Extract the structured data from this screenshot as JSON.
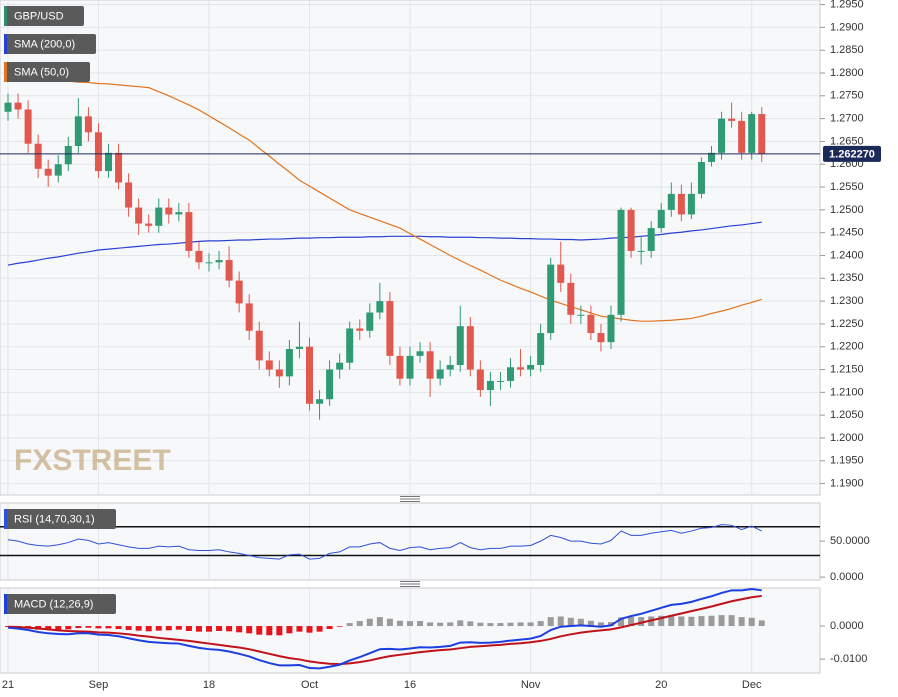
{
  "chart_data": [
    {
      "type": "candlestick",
      "name": "GBP/USD",
      "color": "#2e8b6e",
      "up_color": "#2f9a74",
      "down_color": "#e0584e",
      "watermark": "FXSTREET",
      "categories": [
        "21",
        null,
        null,
        null,
        null,
        null,
        null,
        null,
        null,
        "Sep",
        null,
        null,
        null,
        null,
        null,
        null,
        null,
        null,
        null,
        null,
        "18",
        null,
        null,
        null,
        null,
        null,
        null,
        null,
        null,
        null,
        "Oct",
        null,
        null,
        null,
        null,
        null,
        null,
        null,
        null,
        null,
        "16",
        null,
        null,
        null,
        null,
        null,
        null,
        null,
        null,
        null,
        null,
        null,
        "Nov",
        null,
        null,
        null,
        null,
        null,
        null,
        null,
        null,
        null,
        null,
        null,
        null,
        "20",
        null,
        null,
        null,
        null,
        null,
        null,
        null,
        null,
        "Dec",
        null
      ],
      "open": [
        1.2715,
        1.2735,
        1.272,
        1.2645,
        1.259,
        1.2575,
        1.26,
        1.264,
        1.2705,
        1.267,
        1.2585,
        1.2625,
        1.256,
        1.2505,
        1.247,
        1.2465,
        1.2505,
        1.249,
        1.2495,
        1.241,
        1.2385,
        1.2385,
        1.239,
        1.2345,
        1.2295,
        1.2235,
        1.217,
        1.215,
        1.2135,
        1.2195,
        1.22,
        1.2075,
        1.2085,
        1.215,
        1.2165,
        1.224,
        1.2235,
        1.2275,
        1.23,
        1.218,
        1.213,
        1.218,
        1.219,
        1.213,
        1.215,
        1.216,
        1.2245,
        1.215,
        1.2105,
        1.2125,
        1.2125,
        1.2155,
        1.215,
        1.216,
        1.223,
        1.238,
        1.234,
        1.227,
        1.227,
        1.223,
        1.221,
        1.227,
        1.25,
        1.241,
        1.241,
        1.246,
        1.25,
        1.2535,
        1.249,
        1.2535,
        1.2605,
        1.2625,
        1.27,
        1.2695,
        1.2625,
        1.271
      ],
      "high": [
        1.2755,
        1.2755,
        1.274,
        1.2665,
        1.261,
        1.262,
        1.266,
        1.2745,
        1.2725,
        1.269,
        1.2645,
        1.2645,
        1.258,
        1.2525,
        1.249,
        1.2525,
        1.2525,
        1.2515,
        1.2515,
        1.243,
        1.2405,
        1.241,
        1.242,
        1.2365,
        1.2315,
        1.2255,
        1.219,
        1.217,
        1.2215,
        1.2255,
        1.222,
        1.2105,
        1.217,
        1.2185,
        1.2255,
        1.226,
        1.2295,
        1.234,
        1.232,
        1.22,
        1.22,
        1.221,
        1.221,
        1.217,
        1.218,
        1.229,
        1.2265,
        1.217,
        1.2145,
        1.2145,
        1.2175,
        1.2195,
        1.218,
        1.225,
        1.2395,
        1.243,
        1.236,
        1.229,
        1.229,
        1.225,
        1.229,
        1.2505,
        1.2505,
        1.244,
        1.2475,
        1.2515,
        1.256,
        1.2555,
        1.256,
        1.2615,
        1.264,
        1.2715,
        1.2735,
        1.2715,
        1.2715,
        1.2725
      ],
      "low": [
        1.2695,
        1.27,
        1.2625,
        1.257,
        1.255,
        1.256,
        1.2585,
        1.2625,
        1.265,
        1.257,
        1.257,
        1.2545,
        1.2485,
        1.2445,
        1.245,
        1.245,
        1.247,
        1.2475,
        1.2395,
        1.237,
        1.2365,
        1.237,
        1.233,
        1.2275,
        1.2215,
        1.215,
        1.2135,
        1.211,
        1.2115,
        1.2175,
        1.206,
        1.204,
        1.207,
        1.213,
        1.215,
        1.2215,
        1.222,
        1.226,
        1.216,
        1.2115,
        1.2115,
        1.2165,
        1.209,
        1.2115,
        1.2135,
        1.2145,
        1.2135,
        1.209,
        1.207,
        1.2105,
        1.211,
        1.2135,
        1.2135,
        1.2145,
        1.2215,
        1.232,
        1.225,
        1.225,
        1.2215,
        1.219,
        1.2195,
        1.2255,
        1.2395,
        1.238,
        1.2395,
        1.245,
        1.2485,
        1.2475,
        1.248,
        1.2525,
        1.2595,
        1.261,
        1.268,
        1.261,
        1.261,
        1.2605
      ],
      "close": [
        1.2735,
        1.272,
        1.2645,
        1.259,
        1.2575,
        1.26,
        1.264,
        1.2705,
        1.267,
        1.2585,
        1.2625,
        1.256,
        1.2505,
        1.247,
        1.2465,
        1.2505,
        1.249,
        1.2495,
        1.241,
        1.2385,
        1.2385,
        1.239,
        1.2345,
        1.2295,
        1.2235,
        1.217,
        1.215,
        1.2135,
        1.2195,
        1.22,
        1.2075,
        1.2085,
        1.215,
        1.2165,
        1.224,
        1.2235,
        1.2275,
        1.23,
        1.218,
        1.213,
        1.218,
        1.219,
        1.213,
        1.215,
        1.216,
        1.2245,
        1.215,
        1.2105,
        1.2125,
        1.2125,
        1.2155,
        1.215,
        1.216,
        1.223,
        1.238,
        1.234,
        1.227,
        1.227,
        1.223,
        1.221,
        1.227,
        1.25,
        1.241,
        1.241,
        1.246,
        1.25,
        1.2535,
        1.249,
        1.2535,
        1.2605,
        1.2625,
        1.27,
        1.2695,
        1.2625,
        1.271,
        1.2623
      ],
      "series": [
        {
          "name": "SMA (200,0)",
          "color": "#2a3fd4",
          "values": [
            1.2379,
            1.2383,
            1.2386,
            1.239,
            1.2394,
            1.2397,
            1.2401,
            1.2405,
            1.2408,
            1.2412,
            1.2414,
            1.2416,
            1.2418,
            1.242,
            1.2422,
            1.2424,
            1.2425,
            1.2427,
            1.2429,
            1.2431,
            1.2432,
            1.2432,
            1.2433,
            1.2434,
            1.2434,
            1.2435,
            1.2436,
            1.2436,
            1.2437,
            1.2438,
            1.2438,
            1.2439,
            1.2439,
            1.244,
            1.244,
            1.244,
            1.2441,
            1.2441,
            1.2442,
            1.2442,
            1.2442,
            1.2442,
            1.2441,
            1.2441,
            1.244,
            1.244,
            1.244,
            1.2439,
            1.2439,
            1.2438,
            1.2438,
            1.2437,
            1.2437,
            1.2436,
            1.2436,
            1.2435,
            1.2435,
            1.2434,
            1.2435,
            1.2436,
            1.2438,
            1.2439,
            1.244,
            1.2442,
            1.2444,
            1.2446,
            1.2449,
            1.2451,
            1.2454,
            1.2456,
            1.2459,
            1.2462,
            1.2465,
            1.2467,
            1.247,
            1.2473
          ]
        },
        {
          "name": "SMA (50,0)",
          "color": "#e2731f",
          "values": [
            1.279,
            1.2789,
            1.2788,
            1.2786,
            1.2785,
            1.2783,
            1.2782,
            1.278,
            1.2779,
            1.2777,
            1.2776,
            1.2774,
            1.2772,
            1.277,
            1.2768,
            1.2759,
            1.275,
            1.274,
            1.273,
            1.2719,
            1.2706,
            1.2693,
            1.268,
            1.2666,
            1.2653,
            1.2635,
            1.2618,
            1.26,
            1.2583,
            1.2565,
            1.2552,
            1.2539,
            1.2526,
            1.2513,
            1.25,
            1.2492,
            1.2484,
            1.2476,
            1.2468,
            1.246,
            1.2448,
            1.2436,
            1.2424,
            1.2412,
            1.24,
            1.2389,
            1.2378,
            1.2368,
            1.2357,
            1.2346,
            1.2337,
            1.2328,
            1.232,
            1.2311,
            1.2302,
            1.2295,
            1.2288,
            1.2281,
            1.2274,
            1.2267,
            1.2264,
            1.2261,
            1.2258,
            1.2256,
            1.2256,
            1.2257,
            1.2258,
            1.226,
            1.2262,
            1.2267,
            1.2273,
            1.2278,
            1.2284,
            1.2291,
            1.2297,
            1.2304
          ]
        }
      ],
      "last_price": {
        "value": 1.26227,
        "label": "1.262270"
      },
      "last_price_color": "#1c2a5a",
      "ylim": [
        1.1875,
        1.296
      ],
      "yticks": [
        {
          "value": 1.19,
          "label": "1.1900"
        },
        {
          "value": 1.195,
          "label": "1.1950"
        },
        {
          "value": 1.2,
          "label": "1.2000"
        },
        {
          "value": 1.205,
          "label": "1.2050"
        },
        {
          "value": 1.21,
          "label": "1.2100"
        },
        {
          "value": 1.215,
          "label": "1.2150"
        },
        {
          "value": 1.22,
          "label": "1.2200"
        },
        {
          "value": 1.225,
          "label": "1.2250"
        },
        {
          "value": 1.23,
          "label": "1.2300"
        },
        {
          "value": 1.235,
          "label": "1.2350"
        },
        {
          "value": 1.24,
          "label": "1.2400"
        },
        {
          "value": 1.245,
          "label": "1.2450"
        },
        {
          "value": 1.25,
          "label": "1.2500"
        },
        {
          "value": 1.255,
          "label": "1.2550"
        },
        {
          "value": 1.26,
          "label": "1.2600"
        },
        {
          "value": 1.265,
          "label": "1.2650"
        },
        {
          "value": 1.27,
          "label": "1.2700"
        },
        {
          "value": 1.275,
          "label": "1.2750"
        },
        {
          "value": 1.28,
          "label": "1.2800"
        },
        {
          "value": 1.285,
          "label": "1.2850"
        },
        {
          "value": 1.29,
          "label": "1.2900"
        },
        {
          "value": 1.295,
          "label": "1.2950"
        }
      ],
      "grid": true
    },
    {
      "type": "line",
      "series": [
        {
          "name": "RSI (14,70,30,1)",
          "color": "#3050d8",
          "values": [
            52,
            50,
            46,
            44,
            43,
            45,
            48,
            53,
            51,
            46,
            48,
            45,
            42,
            40,
            40,
            43,
            42,
            43,
            38,
            37,
            37,
            38,
            35,
            33,
            30,
            27,
            26,
            25,
            31,
            32,
            25,
            26,
            33,
            35,
            42,
            42,
            46,
            48,
            40,
            37,
            41,
            42,
            38,
            40,
            41,
            48,
            41,
            38,
            40,
            40,
            43,
            43,
            44,
            50,
            58,
            55,
            50,
            50,
            47,
            46,
            51,
            64,
            58,
            58,
            61,
            63,
            65,
            61,
            64,
            68,
            69,
            73,
            72,
            66,
            71,
            64
          ]
        }
      ],
      "levels": [
        70,
        30
      ],
      "level_color": "#111111",
      "ylim": [
        -4,
        103
      ],
      "yticks": [
        {
          "value": 50,
          "label": "50.0000"
        },
        {
          "value": 0,
          "label": "0.0000"
        }
      ],
      "grid": false
    },
    {
      "type": "combo",
      "title": "MACD (12,26,9)",
      "macd": {
        "color": "#1d3fe0",
        "values": [
          -0.0005,
          -0.0008,
          -0.0012,
          -0.0018,
          -0.0022,
          -0.0024,
          -0.0025,
          -0.0022,
          -0.0022,
          -0.0026,
          -0.0027,
          -0.0031,
          -0.0037,
          -0.0043,
          -0.0048,
          -0.005,
          -0.0052,
          -0.0053,
          -0.006,
          -0.0066,
          -0.007,
          -0.0072,
          -0.0077,
          -0.0084,
          -0.0092,
          -0.0103,
          -0.0112,
          -0.0119,
          -0.0119,
          -0.0118,
          -0.0127,
          -0.0128,
          -0.0123,
          -0.0117,
          -0.0104,
          -0.0094,
          -0.0082,
          -0.007,
          -0.0069,
          -0.0071,
          -0.0068,
          -0.0064,
          -0.0065,
          -0.0063,
          -0.006,
          -0.005,
          -0.0049,
          -0.0051,
          -0.005,
          -0.0048,
          -0.0044,
          -0.0041,
          -0.0038,
          -0.003,
          -0.0012,
          -0.0002,
          0.0,
          0.0002,
          0.0,
          -0.0002,
          0.0002,
          0.0022,
          0.003,
          0.0037,
          0.0046,
          0.0055,
          0.0064,
          0.0067,
          0.0073,
          0.0082,
          0.009,
          0.01,
          0.0108,
          0.0108,
          0.0112,
          0.0108
        ]
      },
      "signal": {
        "color": "#c0121b",
        "values": [
          -0.0002,
          -0.0003,
          -0.0005,
          -0.0007,
          -0.001,
          -0.0013,
          -0.0015,
          -0.0016,
          -0.0017,
          -0.0019,
          -0.002,
          -0.0022,
          -0.0025,
          -0.0029,
          -0.0032,
          -0.0036,
          -0.0039,
          -0.0042,
          -0.0045,
          -0.0049,
          -0.0053,
          -0.0057,
          -0.0061,
          -0.0065,
          -0.007,
          -0.0077,
          -0.0084,
          -0.0091,
          -0.0097,
          -0.0101,
          -0.0107,
          -0.0111,
          -0.0114,
          -0.0115,
          -0.0113,
          -0.0109,
          -0.0104,
          -0.0097,
          -0.0091,
          -0.0087,
          -0.0083,
          -0.0079,
          -0.0076,
          -0.0073,
          -0.0071,
          -0.0067,
          -0.0063,
          -0.0061,
          -0.0059,
          -0.0057,
          -0.0054,
          -0.0052,
          -0.0049,
          -0.0045,
          -0.0039,
          -0.0031,
          -0.0025,
          -0.002,
          -0.0016,
          -0.0013,
          -0.001,
          -0.0004,
          0.0003,
          0.001,
          0.0017,
          0.0024,
          0.0031,
          0.0038,
          0.0045,
          0.0052,
          0.0059,
          0.0067,
          0.0075,
          0.0081,
          0.0087,
          0.0091
        ]
      },
      "histogram": {
        "positive_color": "#9a9a9a",
        "negative_color": "#e8141c",
        "values": [
          -0.0003,
          -0.0005,
          -0.0007,
          -0.0011,
          -0.0012,
          -0.0011,
          -0.001,
          -0.0006,
          -0.0005,
          -0.0007,
          -0.0007,
          -0.0009,
          -0.0012,
          -0.0014,
          -0.0016,
          -0.0014,
          -0.0013,
          -0.0011,
          -0.0015,
          -0.0017,
          -0.0017,
          -0.0015,
          -0.0016,
          -0.0019,
          -0.0022,
          -0.0026,
          -0.0028,
          -0.0028,
          -0.0022,
          -0.0017,
          -0.002,
          -0.0017,
          -0.0009,
          -0.0002,
          0.0009,
          0.0015,
          0.0022,
          0.0027,
          0.0022,
          0.0016,
          0.0015,
          0.0015,
          0.0011,
          0.001,
          0.0011,
          0.0017,
          0.0014,
          0.001,
          0.0009,
          0.0009,
          0.001,
          0.0011,
          0.0011,
          0.0015,
          0.0027,
          0.0029,
          0.0025,
          0.0022,
          0.0016,
          0.0011,
          0.0012,
          0.0026,
          0.0027,
          0.0027,
          0.0029,
          0.0031,
          0.0033,
          0.0029,
          0.0028,
          0.003,
          0.0031,
          0.0033,
          0.0033,
          0.0027,
          0.0025,
          0.0017
        ]
      },
      "ylim": [
        -0.0142,
        0.0115
      ],
      "yticks": [
        {
          "value": 0,
          "label": "0.0000"
        },
        {
          "value": -0.01,
          "label": "-0.0100"
        }
      ],
      "grid": false
    }
  ]
}
